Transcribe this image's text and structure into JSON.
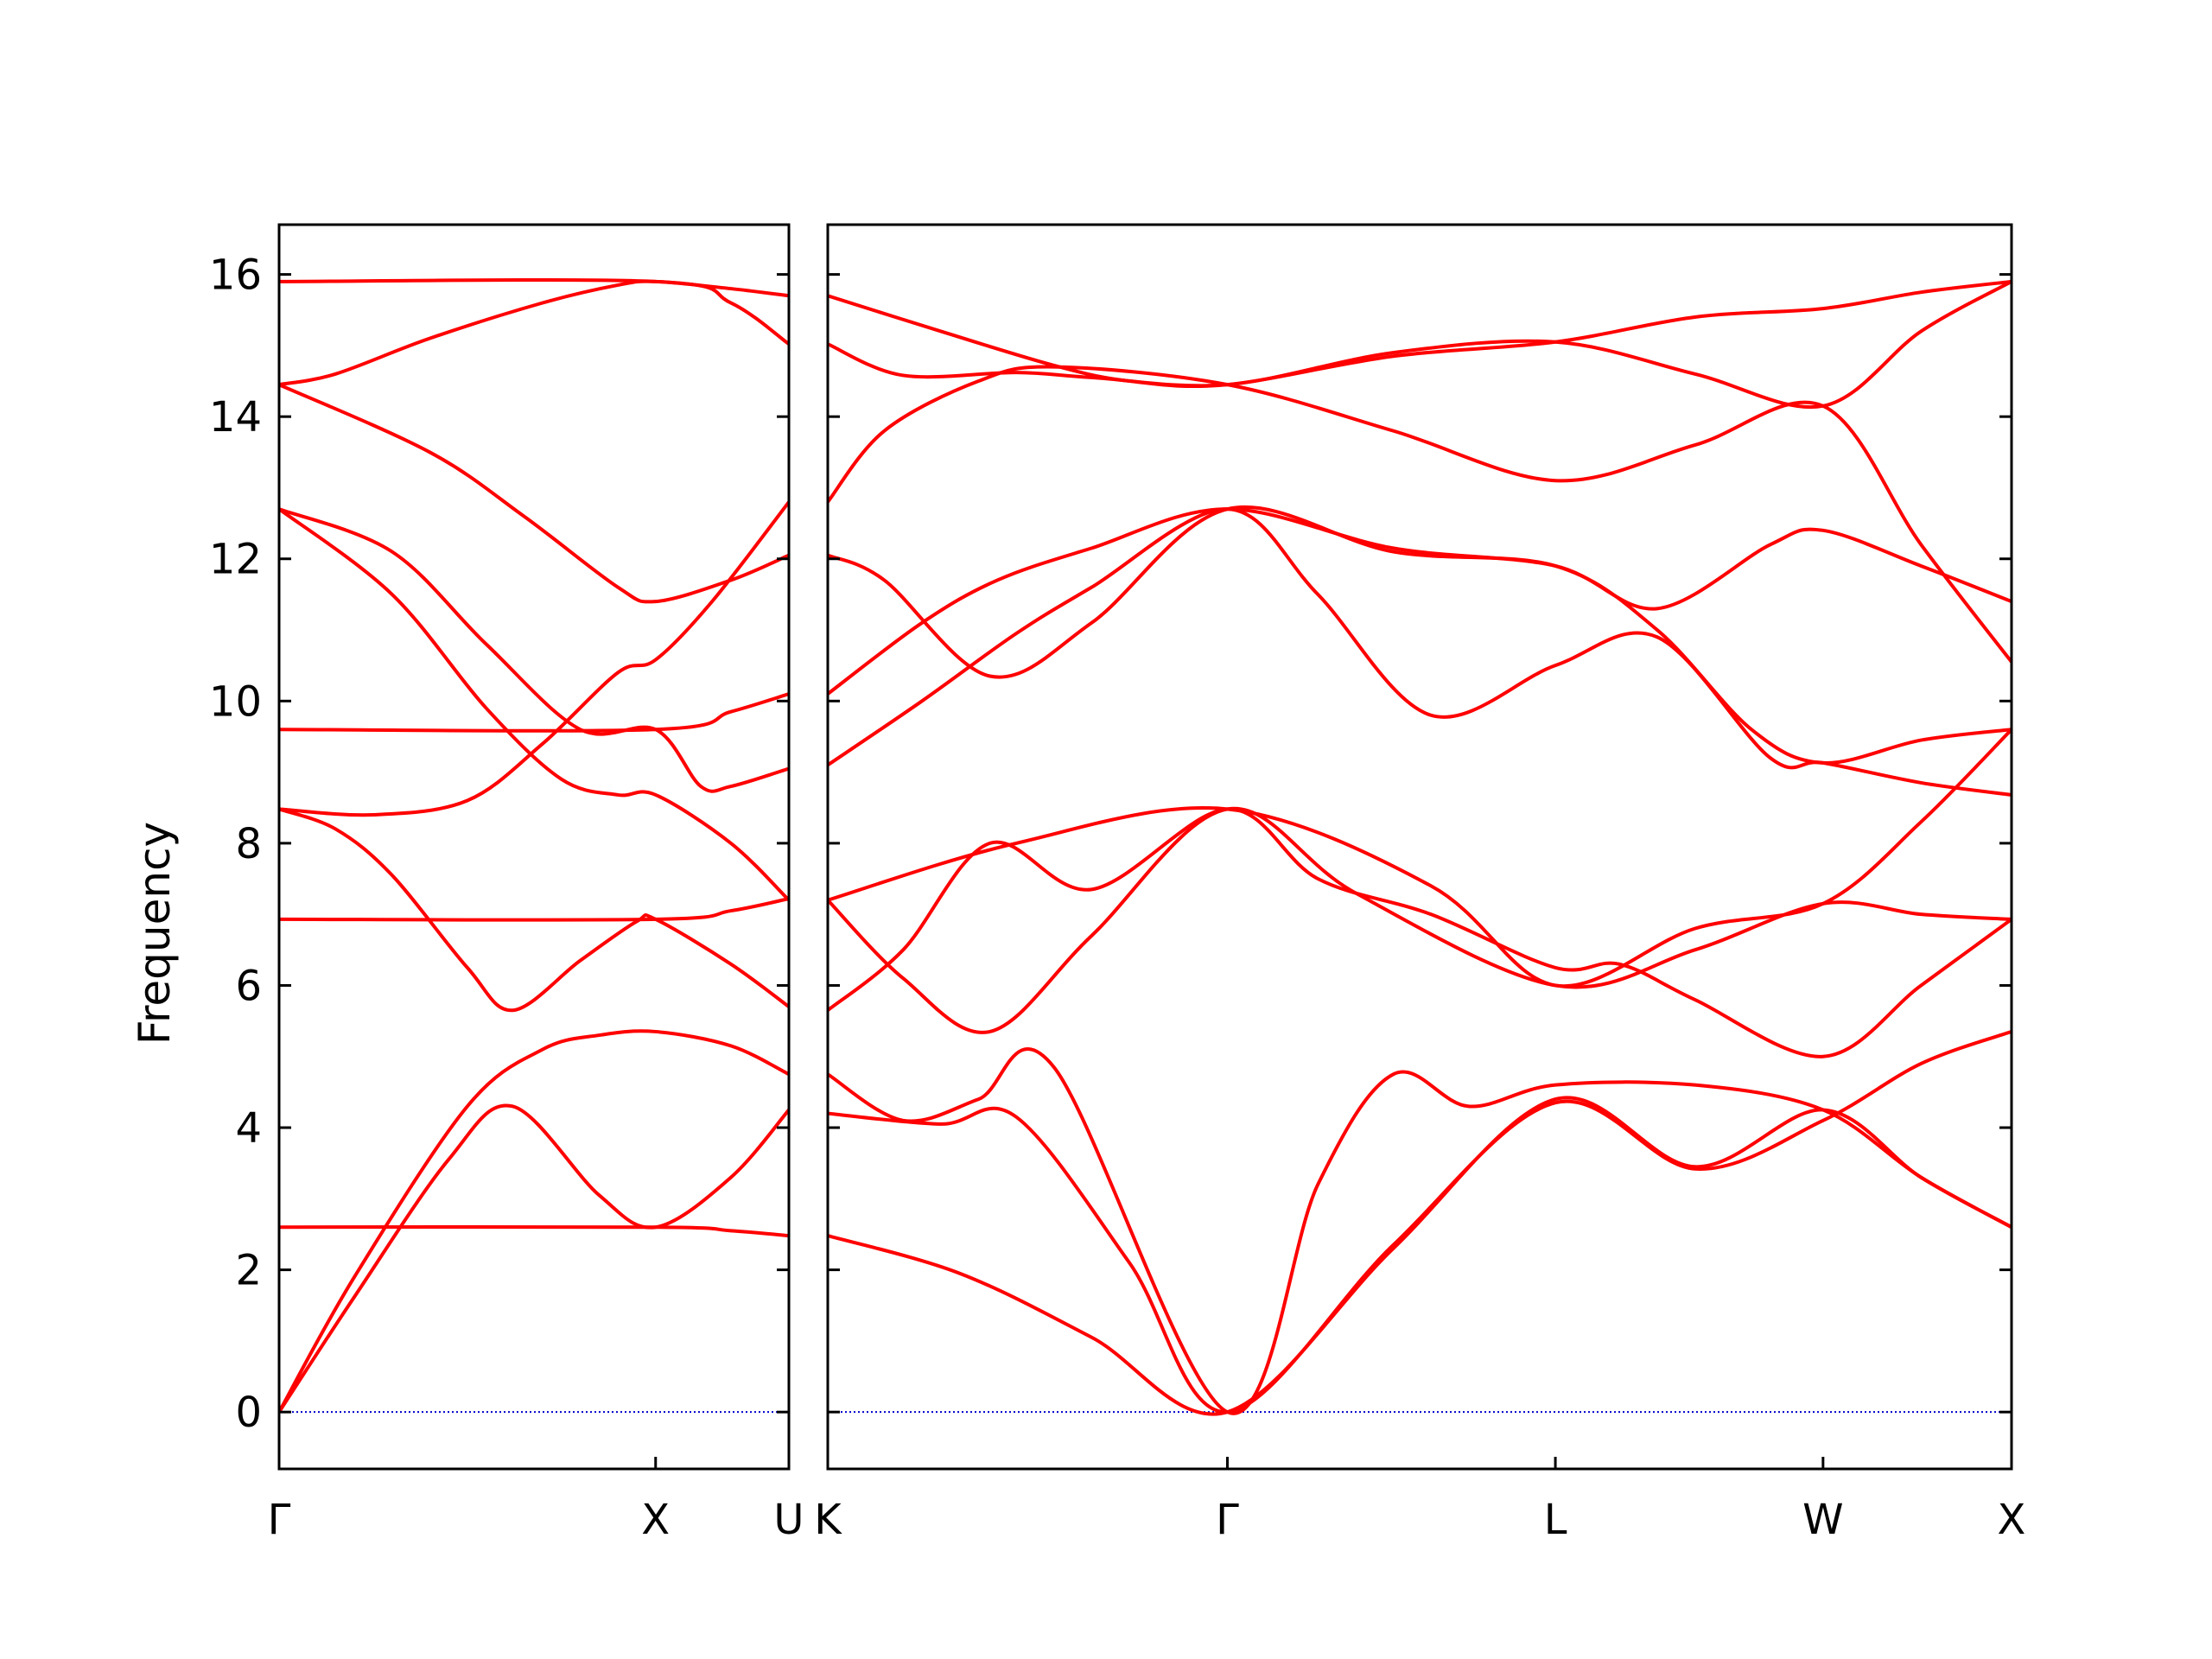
{
  "chart_data": {
    "type": "line",
    "title": "",
    "ylabel": "Frequency",
    "xlabel": "",
    "ylim": [
      -0.8,
      16.7
    ],
    "yticks": [
      0,
      2,
      4,
      6,
      8,
      10,
      12,
      14,
      16
    ],
    "grid": false,
    "legend": "none",
    "line_color": "#ff0000",
    "zero_line_color": "#0000cc",
    "segments": [
      {
        "path": "Γ-X-U",
        "xlim": [
          0,
          1.354
        ],
        "xticks": [
          {
            "x": 0,
            "label": "Γ"
          },
          {
            "x": 1.0,
            "label": "X"
          },
          {
            "x": 1.354,
            "label": "U"
          }
        ],
        "bands": [
          {
            "x": [
              0,
              0.2,
              0.45,
              0.62,
              0.85,
              1.0,
              1.2,
              1.354
            ],
            "y": [
              0,
              1.62,
              3.55,
              4.3,
              3.05,
              2.6,
              3.3,
              4.25
            ]
          },
          {
            "x": [
              0,
              0.2,
              0.5,
              0.7,
              0.85,
              1.0,
              1.2,
              1.354
            ],
            "y": [
              0,
              1.9,
              4.3,
              5.1,
              5.3,
              5.35,
              5.15,
              4.75
            ]
          },
          {
            "x": [
              0,
              1.0,
              1.2,
              1.354
            ],
            "y": [
              2.6,
              2.6,
              2.55,
              2.48
            ]
          },
          {
            "x": [
              0,
              0.15,
              0.3,
              0.5,
              0.62,
              0.8,
              0.95,
              1.0,
              1.2,
              1.354
            ],
            "y": [
              8.48,
              8.2,
              7.55,
              6.25,
              5.65,
              6.35,
              6.9,
              6.93,
              6.3,
              5.7
            ]
          },
          {
            "x": [
              0,
              0.25,
              0.5,
              0.7,
              0.9,
              1.0,
              1.15,
              1.354
            ],
            "y": [
              8.48,
              8.4,
              8.6,
              9.4,
              10.4,
              10.58,
              11.4,
              12.8
            ]
          },
          {
            "x": [
              0,
              0.3,
              0.55,
              0.8,
              1.0,
              1.12,
              1.2,
              1.354
            ],
            "y": [
              12.7,
              12.1,
              10.8,
              9.6,
              9.6,
              8.8,
              8.8,
              9.05
            ]
          },
          {
            "x": [
              0,
              0.3,
              0.55,
              0.75,
              0.9,
              1.0,
              1.2,
              1.354
            ],
            "y": [
              12.7,
              11.5,
              9.9,
              8.9,
              8.68,
              8.68,
              8.0,
              7.2
            ]
          },
          {
            "x": [
              0,
              1.0,
              1.2,
              1.354
            ],
            "y": [
              6.93,
              6.93,
              7.05,
              7.22
            ]
          },
          {
            "x": [
              0,
              1.0,
              1.2,
              1.354
            ],
            "y": [
              9.6,
              9.6,
              9.85,
              10.1
            ]
          },
          {
            "x": [
              0,
              0.4,
              0.65,
              0.9,
              1.0,
              1.2,
              1.354
            ],
            "y": [
              14.45,
              13.5,
              12.6,
              11.6,
              11.4,
              11.7,
              12.05
            ]
          },
          {
            "x": [
              0,
              0.15,
              0.4,
              0.7,
              0.9,
              1.0,
              1.2,
              1.354
            ],
            "y": [
              14.45,
              14.6,
              15.1,
              15.6,
              15.85,
              15.9,
              15.8,
              15.7
            ]
          },
          {
            "x": [
              0,
              1.0,
              1.2,
              1.354
            ],
            "y": [
              15.9,
              15.9,
              15.6,
              15.02
            ]
          }
        ]
      },
      {
        "path": "K-Γ-L-W-X",
        "xlim": [
          0,
          3.14
        ],
        "xticks": [
          {
            "x": 0,
            "label": "K"
          },
          {
            "x": 1.06,
            "label": "Γ"
          },
          {
            "x": 1.93,
            "label": "L"
          },
          {
            "x": 2.64,
            "label": "W"
          },
          {
            "x": 3.14,
            "label": "X"
          }
        ],
        "bands": [
          {
            "x": [
              0,
              0.35,
              0.7,
              1.06,
              1.5,
              1.93,
              2.3,
              2.64,
              2.9,
              3.14
            ],
            "y": [
              2.48,
              1.95,
              1.05,
              0,
              2.3,
              4.4,
              3.45,
              4.25,
              3.3,
              2.6
            ]
          },
          {
            "x": [
              0,
              0.3,
              0.5,
              0.8,
              1.06,
              1.5,
              1.93,
              2.3,
              2.64,
              2.9,
              3.14
            ],
            "y": [
              4.2,
              4.05,
              4.15,
              2.1,
              0,
              2.35,
              4.35,
              3.42,
              4.1,
              4.9,
              5.35
            ]
          },
          {
            "x": [
              0,
              0.2,
              0.4,
              0.6,
              1.06,
              1.3,
              1.5,
              1.7,
              1.93,
              2.3,
              2.64,
              2.9,
              3.14
            ],
            "y": [
              4.75,
              4.1,
              4.4,
              4.85,
              0,
              3.2,
              4.75,
              4.3,
              4.6,
              4.6,
              4.25,
              3.3,
              2.6
            ]
          },
          {
            "x": [
              0,
              0.2,
              0.43,
              0.7,
              1.06,
              1.4,
              1.93,
              2.3,
              2.64,
              2.9,
              3.14
            ],
            "y": [
              7.2,
              6.1,
              5.35,
              6.7,
              8.48,
              7.3,
              6.0,
              6.5,
              7.15,
              7.0,
              6.93
            ]
          },
          {
            "x": [
              0,
              0.2,
              0.43,
              0.7,
              1.06,
              1.3,
              1.6,
              1.93,
              2.1,
              2.3,
              2.64,
              2.9,
              3.14
            ],
            "y": [
              5.65,
              6.5,
              8.0,
              7.35,
              8.48,
              7.5,
              7.0,
              6.25,
              6.3,
              5.8,
              5.0,
              6.0,
              6.93
            ]
          },
          {
            "x": [
              0,
              0.5,
              1.06,
              1.6,
              1.93,
              2.3,
              2.64,
              2.9,
              3.14
            ],
            "y": [
              7.2,
              8.0,
              8.48,
              7.4,
              6.0,
              6.8,
              7.15,
              8.3,
              9.6
            ]
          },
          {
            "x": [
              0,
              0.25,
              0.5,
              0.7,
              1.06,
              1.3,
              1.6,
              1.93,
              2.2,
              2.5,
              2.64,
              2.9,
              3.14
            ],
            "y": [
              9.1,
              10.0,
              10.95,
              11.6,
              12.7,
              11.5,
              9.8,
              10.5,
              10.9,
              9.2,
              9.13,
              8.85,
              8.68
            ]
          },
          {
            "x": [
              0,
              0.25,
              0.45,
              0.7,
              1.06,
              1.5,
              1.93,
              2.2,
              2.5,
              2.64,
              2.9,
              3.14
            ],
            "y": [
              10.1,
              11.1,
              11.7,
              12.15,
              12.7,
              12.15,
              11.9,
              11.3,
              12.2,
              12.4,
              11.9,
              11.4
            ]
          },
          {
            "x": [
              0,
              0.15,
              0.43,
              0.7,
              1.06,
              1.5,
              1.93,
              2.2,
              2.45,
              2.64,
              2.9,
              3.14
            ],
            "y": [
              12.05,
              11.7,
              10.35,
              11.1,
              12.7,
              12.1,
              11.9,
              11.0,
              9.6,
              9.13,
              9.45,
              9.6
            ]
          },
          {
            "x": [
              0,
              0.15,
              0.4,
              0.6,
              1.06,
              1.5,
              1.93,
              2.3,
              2.64,
              2.9,
              3.14
            ],
            "y": [
              12.8,
              13.8,
              14.5,
              14.7,
              14.45,
              13.8,
              13.1,
              13.6,
              14.15,
              12.2,
              10.55
            ]
          },
          {
            "x": [
              0,
              0.2,
              0.5,
              0.7,
              1.06,
              1.5,
              1.93,
              2.3,
              2.64,
              2.9,
              3.14
            ],
            "y": [
              15.02,
              14.58,
              14.62,
              14.55,
              14.45,
              14.9,
              15.05,
              14.6,
              14.15,
              15.2,
              15.9
            ]
          },
          {
            "x": [
              0,
              0.3,
              0.6,
              0.8,
              1.06,
              1.5,
              1.93,
              2.3,
              2.64,
              2.9,
              3.14
            ],
            "y": [
              15.7,
              15.2,
              14.72,
              14.5,
              14.45,
              14.85,
              15.05,
              15.4,
              15.52,
              15.75,
              15.9
            ]
          }
        ]
      }
    ]
  }
}
